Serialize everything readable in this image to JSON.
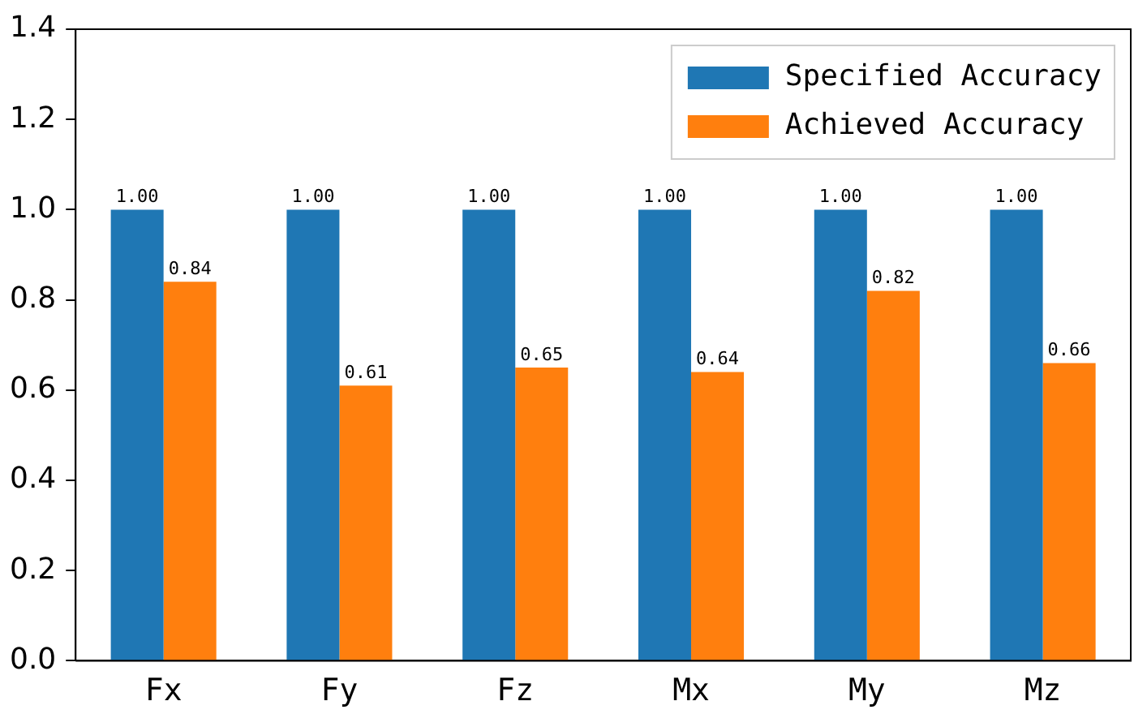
{
  "chart_data": {
    "type": "bar",
    "categories": [
      "Fx",
      "Fy",
      "Fz",
      "Mx",
      "My",
      "Mz"
    ],
    "series": [
      {
        "name": "Specified Accuracy",
        "color": "#1f77b4",
        "values": [
          1.0,
          1.0,
          1.0,
          1.0,
          1.0,
          1.0
        ],
        "value_labels": [
          "1.00",
          "1.00",
          "1.00",
          "1.00",
          "1.00",
          "1.00"
        ]
      },
      {
        "name": "Achieved Accuracy",
        "color": "#ff7f0e",
        "values": [
          0.84,
          0.61,
          0.65,
          0.64,
          0.82,
          0.66
        ],
        "value_labels": [
          "0.84",
          "0.61",
          "0.65",
          "0.64",
          "0.82",
          "0.66"
        ]
      }
    ],
    "ylim": [
      0,
      1.4
    ],
    "yticks": [
      {
        "value": 0,
        "label": "0.0"
      },
      0.2,
      0.4,
      0.6,
      0.8,
      {
        "value": 1,
        "label": "1.0"
      },
      1.2,
      1.4
    ],
    "grid": false,
    "legend": "top right"
  }
}
